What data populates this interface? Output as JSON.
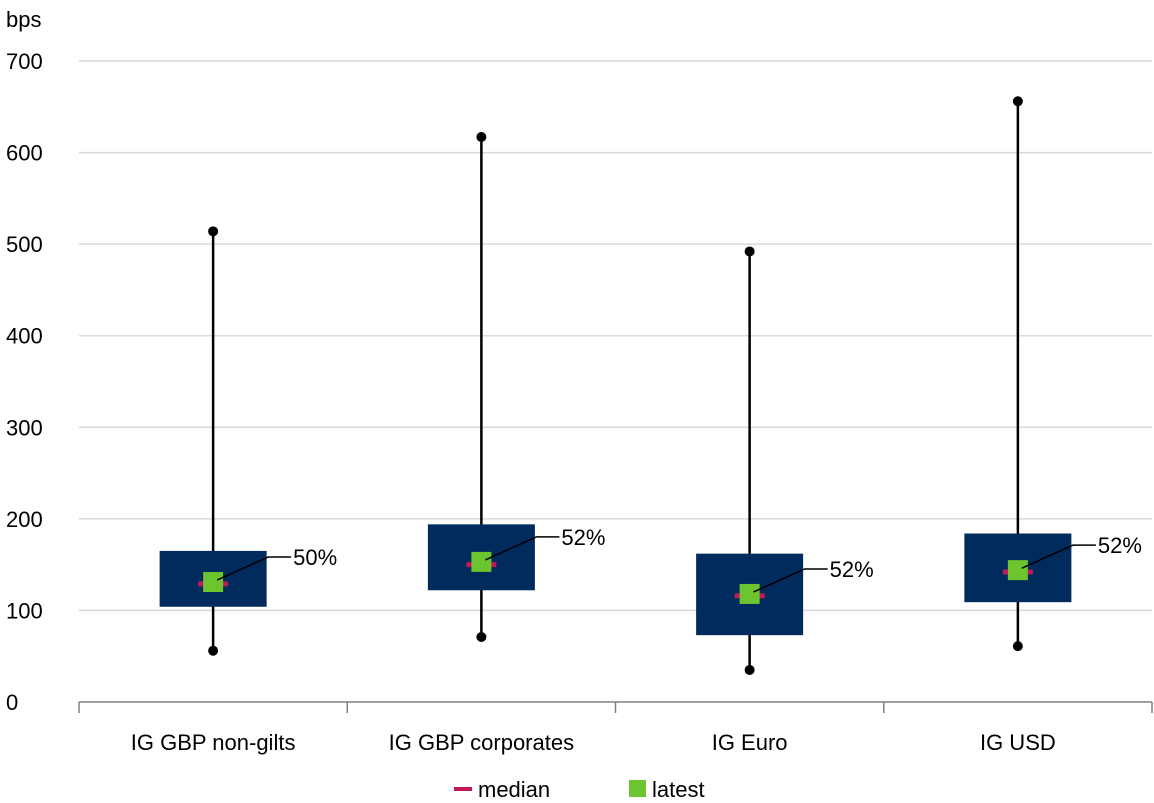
{
  "chart_data": {
    "type": "box",
    "ylabel": "bps",
    "ylim": [
      0,
      700
    ],
    "yticks": [
      0,
      100,
      200,
      300,
      400,
      500,
      600,
      700
    ],
    "grid": true,
    "legend_position": "bottom",
    "categories": [
      "IG GBP non-gilts",
      "IG GBP corporates",
      "IG Euro",
      "IG USD"
    ],
    "series": [
      {
        "category": "IG GBP non-gilts",
        "min": 56,
        "q1": 104,
        "median": 129,
        "q3": 165,
        "max": 514,
        "latest": 131,
        "percentile_label": "50%"
      },
      {
        "category": "IG GBP corporates",
        "min": 71,
        "q1": 122,
        "median": 150,
        "q3": 194,
        "max": 617,
        "latest": 153,
        "percentile_label": "52%"
      },
      {
        "category": "IG Euro",
        "min": 35,
        "q1": 73,
        "median": 116,
        "q3": 162,
        "max": 492,
        "latest": 118,
        "percentile_label": "52%"
      },
      {
        "category": "IG USD",
        "min": 61,
        "q1": 109,
        "median": 142,
        "q3": 184,
        "max": 656,
        "latest": 144,
        "percentile_label": "52%"
      }
    ],
    "legend": [
      {
        "label": "median",
        "color": "#c2185b"
      },
      {
        "label": "latest",
        "color": "#6cc42e"
      }
    ],
    "colors": {
      "box": "#002b5c",
      "whisker": "#000000",
      "median": "#c2185b",
      "latest": "#6cc42e",
      "grid": "#d9d9d9",
      "axis": "#808080"
    }
  }
}
